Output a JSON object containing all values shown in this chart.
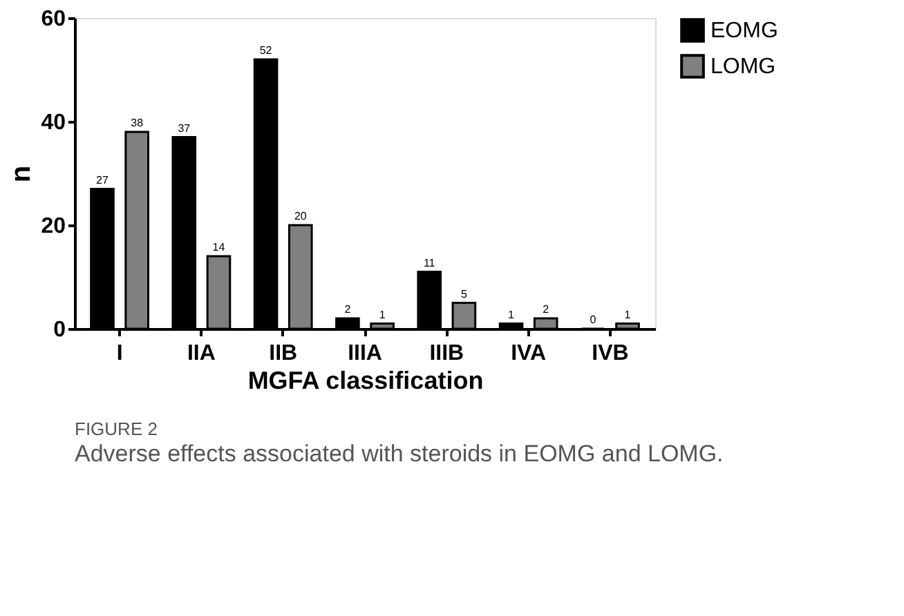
{
  "chart_data": {
    "type": "bar",
    "xlabel": "MGFA classification",
    "ylabel": "n",
    "categories": [
      "I",
      "IIA",
      "IIB",
      "IIIA",
      "IIIB",
      "IVA",
      "IVB"
    ],
    "series": [
      {
        "name": "EOMG",
        "color": "#000000",
        "values": [
          27,
          37,
          52,
          2,
          11,
          1,
          0
        ]
      },
      {
        "name": "LOMG",
        "color": "#808080",
        "values": [
          38,
          14,
          20,
          1,
          5,
          2,
          1
        ]
      }
    ],
    "ylim": [
      0,
      60
    ],
    "yticks": [
      0,
      20,
      40,
      60
    ],
    "grid": false,
    "legend": "top right",
    "data_labels": true,
    "annotations": [
      "FIGURE 2",
      "Adverse effects associated with steroids in EOMG and LOMG."
    ]
  }
}
